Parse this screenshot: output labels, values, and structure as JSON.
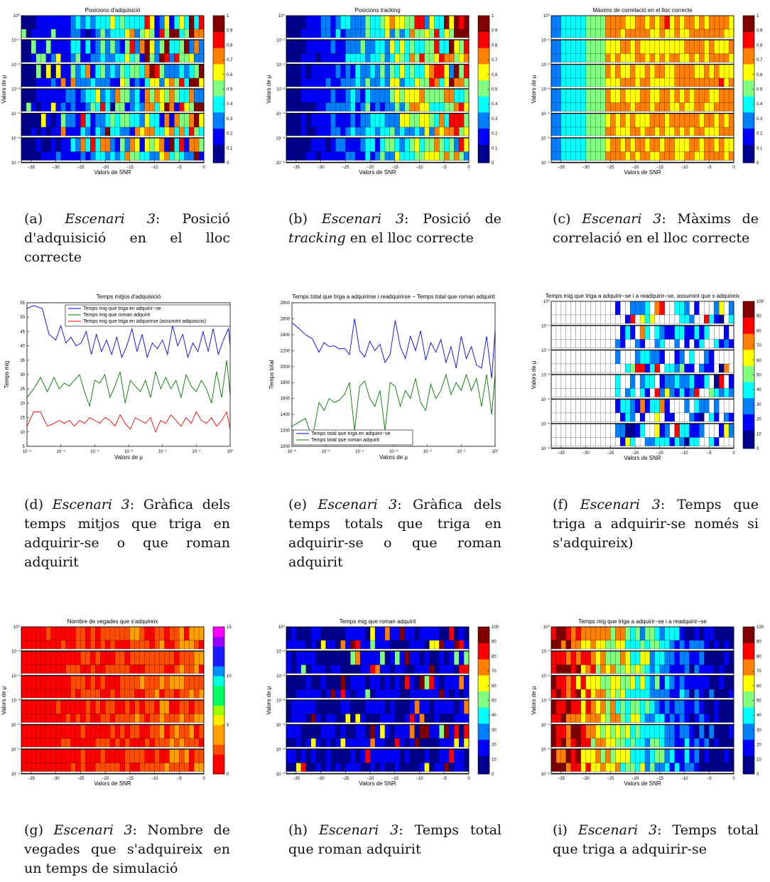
{
  "colormap_colors": {
    "jet": [
      "#00008f",
      "#0000ff",
      "#0080ff",
      "#00ffff",
      "#80ff80",
      "#ffff00",
      "#ff8000",
      "#ff0000",
      "#800000"
    ],
    "hsv_rev": [
      "#ff0000",
      "#ff4d00",
      "#ffa000",
      "#ffee00",
      "#9cff00",
      "#00ff60",
      "#00ffe0",
      "#0090ff",
      "#1a1aff",
      "#9900ff",
      "#ff00ff"
    ]
  },
  "line_colors": {
    "blue": "#0000ff",
    "green": "#007a00",
    "red": "#ff0000"
  },
  "chart_data": [
    {
      "id": "a",
      "type": "heatmap",
      "title": "Posicions d'adquisició",
      "xlabel": "Valors de SNR",
      "ylabel": "Valors de μ",
      "x_ticks": [
        "−35",
        "−30",
        "−25",
        "−20",
        "−15",
        "−10",
        "−5",
        "0"
      ],
      "xlim": [
        -37,
        0
      ],
      "y_ticks": [
        "10⁰",
        "10⁻¹",
        "10⁻²",
        "10⁻³",
        "10⁻⁴",
        "10⁻⁵",
        "10⁻⁶"
      ],
      "colorbar_ticks": [
        "0",
        "0.1",
        "0.2",
        "0.3",
        "0.4",
        "0.5",
        "0.6",
        "0.7",
        "0.8",
        "0.9",
        "1"
      ],
      "colorbar_range": [
        0,
        1
      ],
      "colormap": "jet",
      "trend": "values increase from low SNR (left) to high SNR (right), very noisy",
      "caption": {
        "label": "(a) ",
        "scenario": "Escenari 3",
        "rest": ": Posició d'adquisició en el lloc correcte"
      }
    },
    {
      "id": "b",
      "type": "heatmap",
      "title": "Posicions tracking",
      "xlabel": "Valors de SNR",
      "ylabel": "Valors de μ",
      "x_ticks": [
        "−35",
        "−30",
        "−25",
        "−20",
        "−15",
        "−10",
        "−5",
        "0"
      ],
      "xlim": [
        -37,
        0
      ],
      "y_ticks": [
        "10⁰",
        "10⁻¹",
        "10⁻²",
        "10⁻³",
        "10⁻⁴",
        "10⁻⁵",
        "10⁻⁶"
      ],
      "colorbar_ticks": [
        "0",
        "0.1",
        "0.2",
        "0.3",
        "0.4",
        "0.5",
        "0.6",
        "0.7",
        "0.8",
        "0.9",
        "1"
      ],
      "colorbar_range": [
        0,
        1
      ],
      "colormap": "jet",
      "trend": "values increase from left to right; upper rows reach 1",
      "caption": {
        "label": "(b) ",
        "scenario": "Escenari 3",
        "rest": ": Posició de ",
        "rest_italic": "tracking",
        "rest2": " en el lloc correcte"
      }
    },
    {
      "id": "c",
      "type": "heatmap",
      "title": "Màxims de correlació en el lloc correcte",
      "xlabel": "Valors de SNR",
      "ylabel": "Valors de μ",
      "x_ticks": [
        "−35",
        "−30",
        "−25",
        "−20",
        "−15",
        "−10",
        "−5",
        "0"
      ],
      "xlim": [
        -37,
        0
      ],
      "y_ticks": [
        "10⁰",
        "10⁻¹",
        "10⁻²",
        "10⁻³",
        "10⁻⁴",
        "10⁻⁵",
        "10⁻⁶"
      ],
      "colorbar_ticks": [
        "0",
        "0.1",
        "0.2",
        "0.3",
        "0.4",
        "0.5",
        "0.6",
        "0.7",
        "0.8",
        "0.9",
        "1"
      ],
      "colorbar_range": [
        0,
        1
      ],
      "colormap": "jet",
      "trend": "smooth gradient: blue/cyan at low SNR to yellow/orange above about −25",
      "caption": {
        "label": "(c) ",
        "scenario": "Escenari 3",
        "rest": ": Màxims de correlació en el lloc correcte"
      }
    },
    {
      "id": "d",
      "type": "line",
      "title": "Temps mitjos d'adquisició",
      "xlabel": "Valors de μ",
      "ylabel": "Temps mig",
      "x_log": true,
      "xlim_log10": [
        -6,
        0
      ],
      "x_ticks": [
        "10⁻⁶",
        "10⁻⁵",
        "10⁻⁴",
        "10⁻³",
        "10⁻²",
        "10⁻¹",
        "10⁰"
      ],
      "ylim": [
        5,
        55
      ],
      "y_ticks": [
        "5",
        "10",
        "15",
        "20",
        "25",
        "30",
        "35",
        "40",
        "45",
        "50",
        "55"
      ],
      "legend_position": "top",
      "series": [
        {
          "name": "Temps mig que triga en adquirir−se",
          "color": "blue",
          "log10x": [
            -6,
            -5.8,
            -5.55,
            -5.35,
            -5.15,
            -5,
            -4.85,
            -4.7,
            -4.55,
            -4.4,
            -4.25,
            -4.1,
            -3.95,
            -3.8,
            -3.65,
            -3.5,
            -3.35,
            -3.2,
            -3.05,
            -2.9,
            -2.75,
            -2.6,
            -2.45,
            -2.3,
            -2.15,
            -2,
            -1.85,
            -1.7,
            -1.55,
            -1.4,
            -1.25,
            -1.1,
            -0.95,
            -0.8,
            -0.65,
            -0.5,
            -0.35,
            -0.2,
            -0.05,
            0
          ],
          "y": [
            53,
            54,
            53,
            44,
            42,
            47,
            41,
            43,
            40,
            41,
            45,
            37,
            44,
            38,
            42,
            37,
            43,
            36,
            40,
            46,
            38,
            44,
            36,
            41,
            39,
            42,
            37,
            47,
            40,
            44,
            36,
            41,
            38,
            45,
            38,
            46,
            37,
            42,
            46,
            40
          ]
        },
        {
          "name": "Temps mig que roman adquirit",
          "color": "green",
          "log10x": [
            -6,
            -5.8,
            -5.6,
            -5.4,
            -5.2,
            -5.05,
            -4.9,
            -4.75,
            -4.6,
            -4.45,
            -4.3,
            -4.15,
            -4,
            -3.85,
            -3.7,
            -3.55,
            -3.4,
            -3.25,
            -3.1,
            -2.95,
            -2.8,
            -2.65,
            -2.5,
            -2.35,
            -2.2,
            -2.05,
            -1.9,
            -1.75,
            -1.6,
            -1.45,
            -1.3,
            -1.15,
            -1,
            -0.85,
            -0.7,
            -0.55,
            -0.4,
            -0.25,
            -0.1,
            0
          ],
          "y": [
            22,
            25,
            29,
            24,
            29,
            25,
            27,
            26,
            28,
            30,
            24,
            19,
            28,
            27,
            30,
            22,
            26,
            31,
            20,
            28,
            26,
            24,
            28,
            22,
            31,
            25,
            29,
            25,
            28,
            22,
            30,
            26,
            24,
            28,
            25,
            20,
            31,
            22,
            35,
            23
          ]
        },
        {
          "name": "Temps mig que triga en adquirirse (assumint adquisicio)",
          "color": "red",
          "log10x": [
            -6,
            -5.8,
            -5.6,
            -5.4,
            -5.2,
            -5.05,
            -4.9,
            -4.75,
            -4.6,
            -4.45,
            -4.3,
            -4.15,
            -4,
            -3.85,
            -3.7,
            -3.55,
            -3.4,
            -3.25,
            -3.1,
            -2.95,
            -2.8,
            -2.65,
            -2.5,
            -2.35,
            -2.2,
            -2.05,
            -1.9,
            -1.75,
            -1.6,
            -1.45,
            -1.3,
            -1.15,
            -1,
            -0.85,
            -0.7,
            -0.55,
            -0.4,
            -0.25,
            -0.1,
            0
          ],
          "y": [
            12,
            17,
            17,
            12,
            13,
            14,
            13,
            14,
            12,
            14,
            13,
            15,
            14,
            13,
            15,
            14,
            12,
            16,
            13,
            11,
            15,
            14,
            13,
            15,
            10,
            14,
            13,
            16,
            14,
            12,
            15,
            13,
            17,
            14,
            13,
            15,
            12,
            14,
            17,
            11
          ]
        }
      ],
      "caption": {
        "label": "(d) ",
        "scenario": "Escenari 3",
        "rest": ": Gràfica dels temps mitjos que triga en adquirir-se o que roman adquirit"
      }
    },
    {
      "id": "e",
      "type": "line",
      "title": "Temps total que triga a adquirirse i readquirirse − Temps total que roman adquirit",
      "xlabel": "Valors de μ",
      "ylabel": "Temps total",
      "x_log": true,
      "xlim_log10": [
        -6,
        0
      ],
      "x_ticks": [
        "10⁻⁶",
        "10⁻⁵",
        "10⁻⁴",
        "10⁻³",
        "10⁻²",
        "10⁻¹",
        "10⁰"
      ],
      "ylim": [
        1000,
        2800
      ],
      "y_ticks": [
        "1000",
        "1200",
        "1400",
        "1600",
        "1800",
        "2000",
        "2200",
        "2400",
        "2600",
        "2800"
      ],
      "legend_position": "bottom-left",
      "series": [
        {
          "name": "Temps total que triga en adquirir−se",
          "color": "blue",
          "log10x": [
            -6,
            -5.8,
            -5.6,
            -5.4,
            -5.2,
            -5.05,
            -4.9,
            -4.75,
            -4.6,
            -4.45,
            -4.3,
            -4.15,
            -4,
            -3.85,
            -3.7,
            -3.55,
            -3.4,
            -3.25,
            -3.1,
            -2.95,
            -2.8,
            -2.65,
            -2.5,
            -2.35,
            -2.2,
            -2.05,
            -1.9,
            -1.75,
            -1.6,
            -1.45,
            -1.3,
            -1.15,
            -1,
            -0.85,
            -0.7,
            -0.55,
            -0.4,
            -0.25,
            -0.1,
            0
          ],
          "y": [
            2550,
            2480,
            2400,
            2350,
            2180,
            2300,
            2250,
            2260,
            2220,
            2230,
            2150,
            2600,
            2200,
            2120,
            2320,
            2200,
            2280,
            2050,
            2150,
            2580,
            2250,
            2100,
            2380,
            2200,
            2450,
            2080,
            2300,
            2180,
            2340,
            2050,
            2250,
            1980,
            2380,
            2100,
            2250,
            2020,
            1980,
            2380,
            1850,
            2450
          ]
        },
        {
          "name": "Temps total que roman adquirit",
          "color": "green",
          "log10x": [
            -6,
            -5.8,
            -5.6,
            -5.4,
            -5.2,
            -5.05,
            -4.9,
            -4.75,
            -4.6,
            -4.45,
            -4.3,
            -4.15,
            -4,
            -3.85,
            -3.7,
            -3.55,
            -3.4,
            -3.25,
            -3.1,
            -2.95,
            -2.8,
            -2.65,
            -2.5,
            -2.35,
            -2.2,
            -2.05,
            -1.9,
            -1.75,
            -1.6,
            -1.45,
            -1.3,
            -1.15,
            -1,
            -0.85,
            -0.7,
            -0.55,
            -0.4,
            -0.25,
            -0.1,
            0
          ],
          "y": [
            1250,
            1300,
            1350,
            1100,
            1550,
            1450,
            1600,
            1550,
            1580,
            1650,
            1800,
            1200,
            1750,
            1820,
            1600,
            1500,
            1700,
            1200,
            1800,
            1750,
            1500,
            1700,
            1600,
            1850,
            1550,
            1450,
            1780,
            1600,
            1700,
            1900,
            1650,
            1800,
            1700,
            1900,
            1700,
            1850,
            1500,
            1900,
            1400,
            1900
          ]
        }
      ],
      "caption": {
        "label": "(e) ",
        "scenario": "Escenari 3",
        "rest": ": Gràfica dels temps totals que triga en adquirir-se o que roman adquirit"
      }
    },
    {
      "id": "f",
      "type": "heatmap",
      "title": "Temps mig que triga a adquirir−se i a readquirir−se, assumint que s adquireix",
      "xlabel": "Valors de SNR",
      "ylabel": "Valors de μ",
      "x_ticks": [
        "−35",
        "−30",
        "−25",
        "−20",
        "−15",
        "−10",
        "−5",
        "0"
      ],
      "xlim": [
        -37,
        0
      ],
      "y_ticks": [
        "10⁰",
        "10⁻¹",
        "10⁻²",
        "10⁻³",
        "10⁻⁴",
        "10⁻⁵",
        "10⁻⁶"
      ],
      "colorbar_ticks": [
        "0",
        "10",
        "20",
        "30",
        "40",
        "50",
        "60",
        "70",
        "80",
        "90",
        "100"
      ],
      "colorbar_range": [
        0,
        100
      ],
      "colormap": "jet",
      "trend": "mostly blank (white) cells at low SNR; blue/cyan cells at higher SNR",
      "caption": {
        "label": "(f) ",
        "scenario": "Escenari 3",
        "rest": ": Temps que triga a adquirir-se només si s'adquireix)"
      }
    },
    {
      "id": "g",
      "type": "heatmap",
      "title": "Nombre de vegades que s'adquireix",
      "xlabel": "Valors de SNR",
      "ylabel": "Valors de μ",
      "x_ticks": [
        "−35",
        "−30",
        "−25",
        "−20",
        "−15",
        "−10",
        "−5",
        "0"
      ],
      "xlim": [
        -37,
        0
      ],
      "y_ticks": [
        "10⁰",
        "10⁻¹",
        "10⁻²",
        "10⁻³",
        "10⁻⁴",
        "10⁻⁵",
        "10⁻⁶"
      ],
      "colorbar_ticks": [
        "0",
        "5",
        "10",
        "15"
      ],
      "colorbar_range": [
        0,
        15
      ],
      "colormap": "hsv_rev",
      "trend": "mostly red/orange (0–2) with yellow and green cells at higher SNR",
      "caption": {
        "label": "(g) ",
        "scenario": "Escenari 3",
        "rest": ": Nombre de vegades que s'adquireix en un temps de simulació"
      }
    },
    {
      "id": "h",
      "type": "heatmap",
      "title": "Temps mig que roman adquirit",
      "xlabel": "Valors de SNR",
      "ylabel": "Valors de μ",
      "x_ticks": [
        "−35",
        "−30",
        "−25",
        "−20",
        "−15",
        "−10",
        "−5",
        "0"
      ],
      "xlim": [
        -37,
        0
      ],
      "y_ticks": [
        "10⁰",
        "10⁻¹",
        "10⁻²",
        "10⁻³",
        "10⁻⁴",
        "10⁻⁵",
        "10⁻⁶"
      ],
      "colorbar_ticks": [
        "0",
        "10",
        "20",
        "30",
        "40",
        "50",
        "60",
        "70",
        "80",
        "90",
        "100"
      ],
      "colorbar_range": [
        0,
        100
      ],
      "colormap": "jet",
      "trend": "mostly dark blue; scattered cyan, yellow and red cells at higher SNR",
      "caption": {
        "label": "(h) ",
        "scenario": "Escenari 3",
        "rest": ": Temps total que roman adquirit"
      }
    },
    {
      "id": "i",
      "type": "heatmap",
      "title": "Temps mig que triga a adquirir−se i a readquirir−se",
      "xlabel": "Valors de SNR",
      "ylabel": "Valors de μ",
      "x_ticks": [
        "−35",
        "−30",
        "−25",
        "−20",
        "−15",
        "−10",
        "−5",
        "0"
      ],
      "xlim": [
        -37,
        0
      ],
      "y_ticks": [
        "10⁰",
        "10⁻¹",
        "10⁻²",
        "10⁻³",
        "10⁻⁴",
        "10⁻⁵",
        "10⁻⁶"
      ],
      "colorbar_ticks": [
        "0",
        "10",
        "20",
        "30",
        "40",
        "50",
        "60",
        "70",
        "80",
        "90",
        "100"
      ],
      "colorbar_range": [
        0,
        100
      ],
      "colormap": "jet",
      "trend": "dark red at low SNR (left) decreasing to blue at high SNR (right)",
      "caption": {
        "label": "(i) ",
        "scenario": "Escenari 3",
        "rest": ": Temps total que triga a adquirir-se"
      }
    }
  ]
}
